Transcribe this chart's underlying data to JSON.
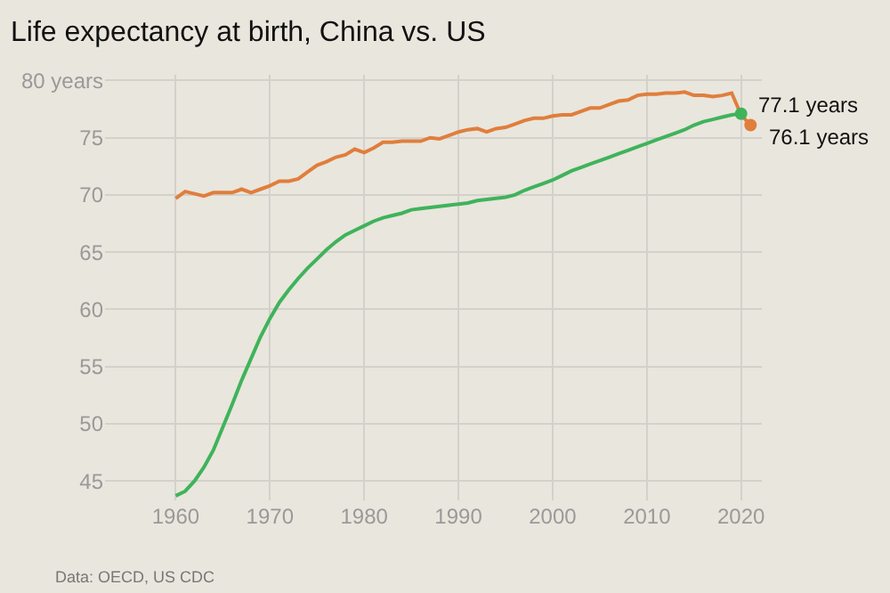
{
  "chart_data": {
    "type": "line",
    "title": "Life expectancy at birth, China vs. US",
    "annotations": [
      "Data: OECD, US CDC"
    ],
    "xlim": [
      1952.5,
      2022.2
    ],
    "xticks": [
      1960,
      1970,
      1980,
      1990,
      2000,
      2010,
      2020
    ],
    "ylim": [
      43.3,
      80.5
    ],
    "yticks": [
      45,
      50,
      55,
      60,
      65,
      70,
      75,
      {
        "value": 80,
        "label": "80 years"
      }
    ],
    "grid": true,
    "marker": "none",
    "line_style": "solid",
    "series": [
      {
        "color": "#e07e3c",
        "x": [
          1960,
          1961,
          1962,
          1963,
          1964,
          1965,
          1966,
          1967,
          1968,
          1969,
          1970,
          1971,
          1972,
          1973,
          1974,
          1975,
          1976,
          1977,
          1978,
          1979,
          1980,
          1981,
          1982,
          1983,
          1984,
          1985,
          1986,
          1987,
          1988,
          1989,
          1990,
          1991,
          1992,
          1993,
          1994,
          1995,
          1996,
          1997,
          1998,
          1999,
          2000,
          2001,
          2002,
          2003,
          2004,
          2005,
          2006,
          2007,
          2008,
          2009,
          2010,
          2011,
          2012,
          2013,
          2014,
          2015,
          2016,
          2017,
          2018,
          2019,
          2020,
          2021
        ],
        "values": [
          69.7,
          70.3,
          70.1,
          69.9,
          70.2,
          70.2,
          70.2,
          70.5,
          70.2,
          70.5,
          70.8,
          71.2,
          71.2,
          71.4,
          72.0,
          72.6,
          72.9,
          73.3,
          73.5,
          74.0,
          73.7,
          74.1,
          74.6,
          74.6,
          74.7,
          74.7,
          74.7,
          75.0,
          74.9,
          75.2,
          75.5,
          75.7,
          75.8,
          75.5,
          75.8,
          75.9,
          76.2,
          76.5,
          76.7,
          76.7,
          76.9,
          77.0,
          77.0,
          77.3,
          77.6,
          77.6,
          77.9,
          78.2,
          78.3,
          78.7,
          78.8,
          78.8,
          78.9,
          78.9,
          79.0,
          78.7,
          78.7,
          78.6,
          78.7,
          78.9,
          77.0,
          76.1
        ],
        "value_labels": [
          null,
          null,
          null,
          null,
          null,
          null,
          null,
          null,
          null,
          null,
          null,
          null,
          null,
          null,
          null,
          null,
          null,
          null,
          null,
          null,
          null,
          null,
          null,
          null,
          null,
          null,
          null,
          null,
          null,
          null,
          null,
          null,
          null,
          null,
          null,
          null,
          null,
          null,
          null,
          null,
          null,
          null,
          null,
          null,
          null,
          null,
          null,
          null,
          null,
          null,
          null,
          null,
          null,
          null,
          null,
          null,
          null,
          null,
          null,
          null,
          null,
          "76.1 years"
        ]
      },
      {
        "color": "#3fb35b",
        "x": [
          1960,
          1961,
          1962,
          1963,
          1964,
          1965,
          1966,
          1967,
          1968,
          1969,
          1970,
          1971,
          1972,
          1973,
          1974,
          1975,
          1976,
          1977,
          1978,
          1979,
          1980,
          1981,
          1982,
          1983,
          1984,
          1985,
          1986,
          1987,
          1988,
          1989,
          1990,
          1991,
          1992,
          1993,
          1994,
          1995,
          1996,
          1997,
          1998,
          1999,
          2000,
          2001,
          2002,
          2003,
          2004,
          2005,
          2006,
          2007,
          2008,
          2009,
          2010,
          2011,
          2012,
          2013,
          2014,
          2015,
          2016,
          2017,
          2018,
          2019,
          2020
        ],
        "values": [
          43.7,
          44.1,
          45.0,
          46.2,
          47.7,
          49.7,
          51.7,
          53.8,
          55.7,
          57.6,
          59.2,
          60.6,
          61.7,
          62.7,
          63.6,
          64.4,
          65.2,
          65.9,
          66.5,
          66.9,
          67.3,
          67.7,
          68.0,
          68.2,
          68.4,
          68.7,
          68.8,
          68.9,
          69.0,
          69.1,
          69.2,
          69.3,
          69.5,
          69.6,
          69.7,
          69.8,
          70.0,
          70.4,
          70.7,
          71.0,
          71.3,
          71.7,
          72.1,
          72.4,
          72.7,
          73.0,
          73.3,
          73.6,
          73.9,
          74.2,
          74.5,
          74.8,
          75.1,
          75.4,
          75.7,
          76.1,
          76.4,
          76.6,
          76.8,
          77.0,
          77.1
        ],
        "value_labels": [
          null,
          null,
          null,
          null,
          null,
          null,
          null,
          null,
          null,
          null,
          null,
          null,
          null,
          null,
          null,
          null,
          null,
          null,
          null,
          null,
          null,
          null,
          null,
          null,
          null,
          null,
          null,
          null,
          null,
          null,
          null,
          null,
          null,
          null,
          null,
          null,
          null,
          null,
          null,
          null,
          null,
          null,
          null,
          null,
          null,
          null,
          null,
          null,
          null,
          null,
          null,
          null,
          null,
          null,
          null,
          null,
          null,
          null,
          null,
          null,
          "77.1 years"
        ]
      }
    ]
  }
}
